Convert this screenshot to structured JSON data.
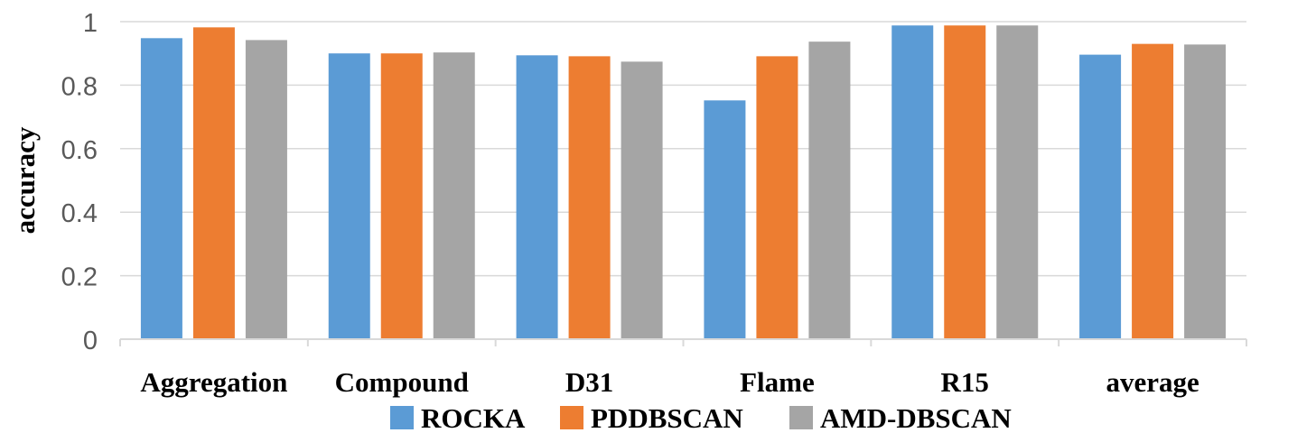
{
  "chart_data": {
    "type": "bar",
    "categories": [
      "Aggregation",
      "Compound",
      "D31",
      "Flame",
      "R15",
      "average"
    ],
    "series": [
      {
        "name": "ROCKA",
        "values": [
          0.948,
          0.9,
          0.894,
          0.752,
          0.988,
          0.896
        ],
        "color": "#5B9BD5"
      },
      {
        "name": "PDDBSCAN",
        "values": [
          0.982,
          0.9,
          0.891,
          0.891,
          0.988,
          0.93
        ],
        "color": "#ED7D31"
      },
      {
        "name": "AMD-DBSCAN",
        "values": [
          0.942,
          0.903,
          0.874,
          0.937,
          0.988,
          0.928
        ],
        "color": "#A5A5A5"
      }
    ],
    "ylabel": "accuracy",
    "xlabel": "",
    "ylim": [
      0,
      1
    ],
    "yticks": [
      "0",
      "0.2",
      "0.4",
      "0.6",
      "0.8",
      "1"
    ],
    "grid": true,
    "legend_position": "bottom"
  }
}
